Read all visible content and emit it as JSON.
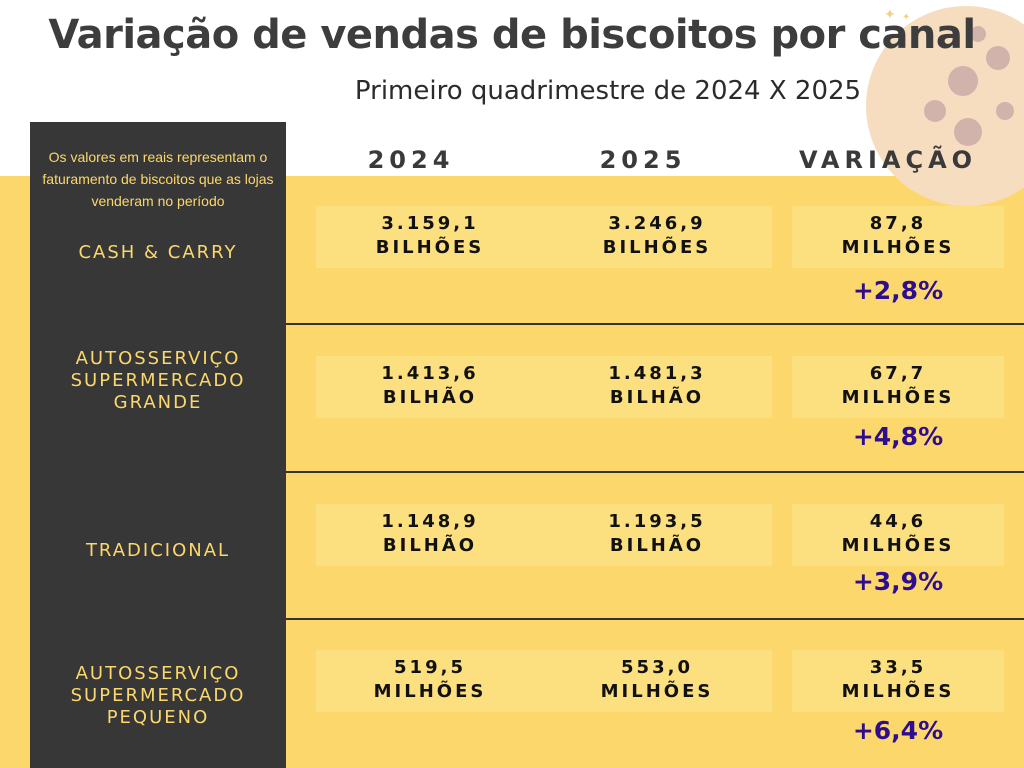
{
  "title": "Variação de vendas  de biscoitos por canal",
  "subtitle": "Primeiro quadrimestre de 2024 X 2025",
  "note": "Os valores  em reais representam o  faturamento de biscoitos que as lojas venderam no período",
  "chart_data": {
    "type": "table",
    "columns": [
      "2024",
      "2025",
      "VARIAÇÃO"
    ],
    "rows": [
      {
        "channel": "CASH & CARRY",
        "v2024": "3.159,1 BILHÕES",
        "v2025": "3.246,9 BILHÕES",
        "variation": "87,8 MILHÕES",
        "pct": "+2,8%"
      },
      {
        "channel": "AUTOSSERVIÇO SUPERMERCADO GRANDE",
        "v2024": "1.413,6 BILHÃO",
        "v2025": "1.481,3 BILHÃO",
        "variation": "67,7 MILHÕES",
        "pct": "+4,8%"
      },
      {
        "channel": "TRADICIONAL",
        "v2024": "1.148,9 BILHÃO",
        "v2025": "1.193,5 BILHÃO",
        "variation": "44,6 MILHÕES",
        "pct": "+3,9%"
      },
      {
        "channel": "AUTOSSERVIÇO SUPERMERCADO PEQUENO",
        "v2024": "519,5 MILHÕES",
        "v2025": "553,0 MILHÕES",
        "variation": "33,5 MILHÕES",
        "pct": "+6,4%"
      }
    ]
  },
  "table": {
    "headers": {
      "h2024": "2024",
      "h2025": "2025",
      "hvar": "VARIAÇÃO"
    },
    "labels": {
      "r0": [
        "CASH & CARRY"
      ],
      "r1": [
        "AUTOSSERVIÇO",
        "SUPERMERCADO",
        "GRANDE"
      ],
      "r2": [
        "TRADICIONAL"
      ],
      "r3": [
        "AUTOSSERVIÇO",
        "SUPERMERCADO",
        "PEQUENO"
      ]
    },
    "cells": {
      "r0": {
        "a": [
          "3.159,1",
          "BILHÕES"
        ],
        "b": [
          "3.246,9",
          "BILHÕES"
        ],
        "c": [
          "87,8",
          "MILHÕES"
        ],
        "p": "+2,8%"
      },
      "r1": {
        "a": [
          "1.413,6",
          "BILHÃO"
        ],
        "b": [
          "1.481,3",
          "BILHÃO"
        ],
        "c": [
          "67,7",
          "MILHÕES"
        ],
        "p": "+4,8%"
      },
      "r2": {
        "a": [
          "1.148,9",
          "BILHÃO"
        ],
        "b": [
          "1.193,5",
          "BILHÃO"
        ],
        "c": [
          "44,6",
          "MILHÕES"
        ],
        "p": "+3,9%"
      },
      "r3": {
        "a": [
          "519,5",
          "MILHÕES"
        ],
        "b": [
          "553,0",
          "MILHÕES"
        ],
        "c": [
          "33,5",
          "MILHÕES"
        ],
        "p": "+6,4%"
      }
    }
  },
  "colors": {
    "accent_yellow": "#fcd86c",
    "sidebar": "#373737",
    "percent": "#2e0e8f",
    "title": "#3d3d3d"
  },
  "decoration": {
    "cookie": "cookie-icon",
    "sparkle": "sparkle-icon"
  }
}
